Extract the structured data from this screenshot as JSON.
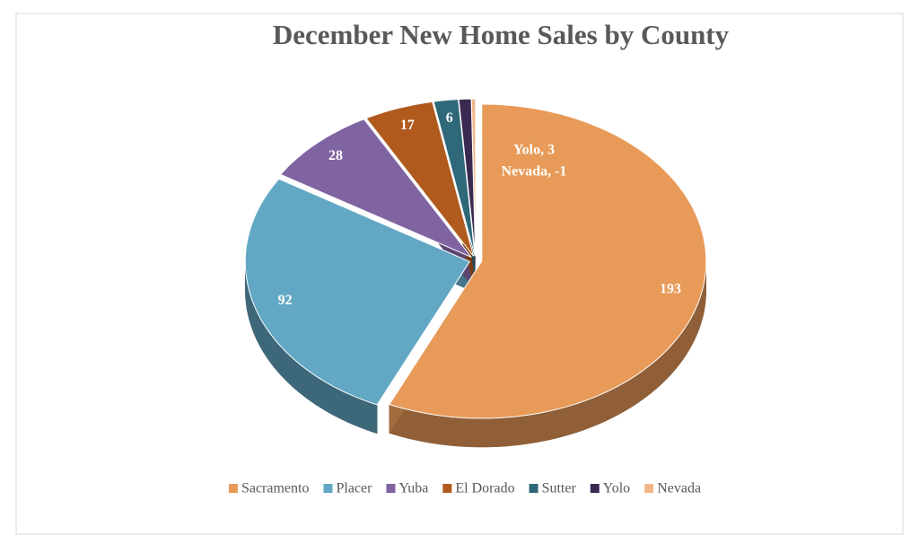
{
  "chart_data": {
    "type": "pie3d",
    "title": "December New Home Sales by County",
    "categories": [
      "Sacramento",
      "Placer",
      "Yuba",
      "El Dorado",
      "Sutter",
      "Yolo",
      "Nevada"
    ],
    "values": [
      193,
      92,
      28,
      17,
      6,
      3,
      -1
    ],
    "value_labels": [
      "193",
      "92",
      "28",
      "17",
      "6",
      "Yolo, 3",
      "Nevada, -1"
    ],
    "colors": [
      "#e89a58",
      "#62a8c4",
      "#8064a2",
      "#b05a1e",
      "#2f6878",
      "#3a2a52",
      "#f2b88a"
    ],
    "legend": "bottom"
  }
}
